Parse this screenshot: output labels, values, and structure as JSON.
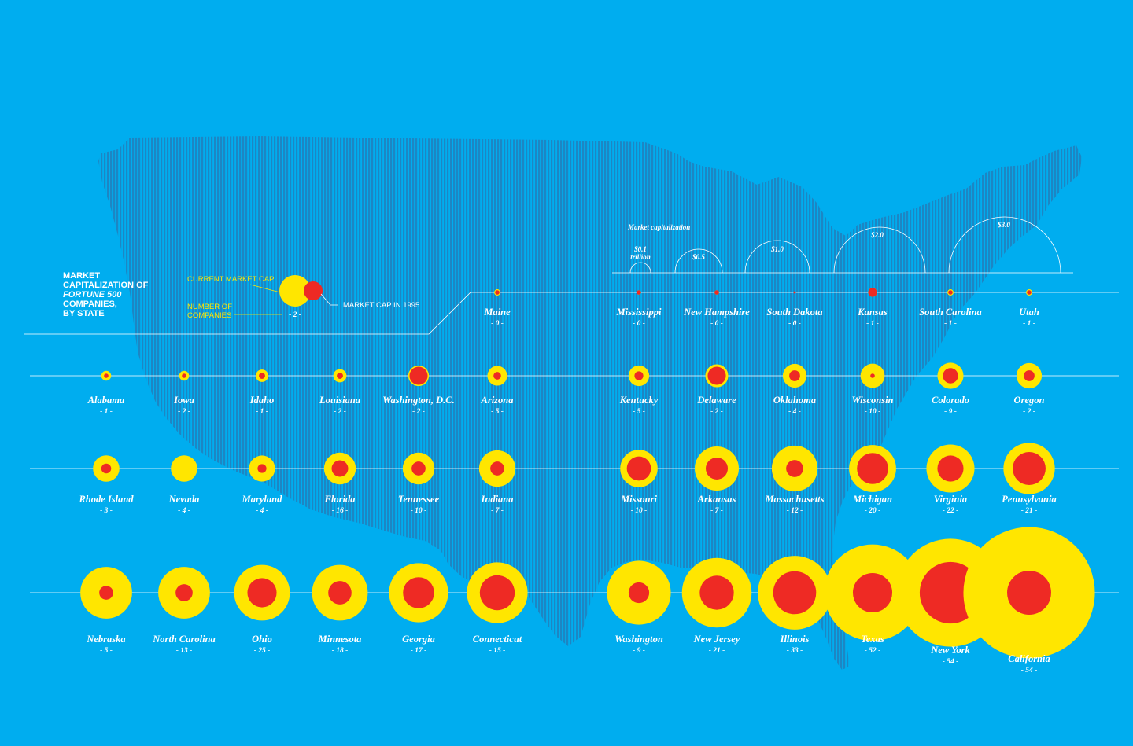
{
  "title_lines": [
    "MARKET",
    "CAPITALIZATION OF",
    "FORTUNE 500",
    "COMPANIES,",
    "BY STATE"
  ],
  "legend": {
    "current_market_cap": "CURRENT MARKET CAP",
    "number_of_companies_lines": [
      "NUMBER OF",
      "COMPANIES"
    ],
    "market_cap_1995": "MARKET CAP IN 1995",
    "sample_count": "- 2 -"
  },
  "scale_key": {
    "title": "Market capitalization",
    "labels": [
      {
        "value": "$0.1",
        "unit": "trillion"
      },
      {
        "value": "$0.5",
        "unit": ""
      },
      {
        "value": "$1.0",
        "unit": ""
      },
      {
        "value": "$2.0",
        "unit": ""
      },
      {
        "value": "$3.0",
        "unit": ""
      }
    ]
  },
  "colors": {
    "background": "#00ADEF",
    "map": "#1C86C4",
    "current": "#FFE600",
    "past": "#EE2A24",
    "text": "#FFFFFF",
    "legend_text": "#FFE600"
  },
  "chart_data": {
    "type": "bubble",
    "value_note": "current and 1995 values are relative circle areas read from bubble size",
    "rows": [
      [
        {
          "state": "Maine",
          "count": "- 0 -",
          "current": 0.02,
          "past": 0.01
        },
        {
          "state": "Mississippi",
          "count": "- 0 -",
          "current": 0.01,
          "past": 0.01
        },
        {
          "state": "New Hampshire",
          "count": "- 0 -",
          "current": 0.01,
          "past": 0.01
        },
        {
          "state": "South Dakota",
          "count": "- 0 -",
          "current": 0.0,
          "past": 0.003
        },
        {
          "state": "Kansas",
          "count": "- 1 -",
          "current": 0.04,
          "past": 0.04
        },
        {
          "state": "South Carolina",
          "count": "- 1 -",
          "current": 0.02,
          "past": 0.01
        },
        {
          "state": "Utah",
          "count": "- 1 -",
          "current": 0.02,
          "past": 0.01
        }
      ],
      [
        {
          "state": "Alabama",
          "count": "- 1 -",
          "current": 0.05,
          "past": 0.01
        },
        {
          "state": "Iowa",
          "count": "- 2 -",
          "current": 0.05,
          "past": 0.01
        },
        {
          "state": "Idaho",
          "count": "- 1 -",
          "current": 0.08,
          "past": 0.02
        },
        {
          "state": "Louisiana",
          "count": "- 2 -",
          "current": 0.09,
          "past": 0.02
        },
        {
          "state": "Washington, D.C.",
          "count": "- 2 -",
          "current": 0.22,
          "past": 0.17
        },
        {
          "state": "Arizona",
          "count": "- 5 -",
          "current": 0.2,
          "past": 0.03
        },
        {
          "state": "Kentucky",
          "count": "- 5 -",
          "current": 0.22,
          "past": 0.04
        },
        {
          "state": "Delaware",
          "count": "- 2 -",
          "current": 0.27,
          "past": 0.17
        },
        {
          "state": "Oklahoma",
          "count": "- 4 -",
          "current": 0.29,
          "past": 0.06
        },
        {
          "state": "Wisconsin",
          "count": "- 10 -",
          "current": 0.3,
          "past": 0.01
        },
        {
          "state": "Colorado",
          "count": "- 9 -",
          "current": 0.35,
          "past": 0.12
        },
        {
          "state": "Oregon",
          "count": "- 2 -",
          "current": 0.33,
          "past": 0.06
        }
      ],
      [
        {
          "state": "Rhode Island",
          "count": "- 3 -",
          "current": 0.36,
          "past": 0.05
        },
        {
          "state": "Nevada",
          "count": "- 4 -",
          "current": 0.36,
          "past": 0.0
        },
        {
          "state": "Maryland",
          "count": "- 4 -",
          "current": 0.35,
          "past": 0.04
        },
        {
          "state": "Florida",
          "count": "- 16 -",
          "current": 0.52,
          "past": 0.14
        },
        {
          "state": "Tennessee",
          "count": "- 10 -",
          "current": 0.52,
          "past": 0.1
        },
        {
          "state": "Indiana",
          "count": "- 7 -",
          "current": 0.68,
          "past": 0.1
        },
        {
          "state": "Missouri",
          "count": "- 10 -",
          "current": 0.72,
          "past": 0.3
        },
        {
          "state": "Arkansas",
          "count": "- 7 -",
          "current": 1.0,
          "past": 0.25
        },
        {
          "state": "Massachusetts",
          "count": "- 12 -",
          "current": 1.08,
          "past": 0.15
        },
        {
          "state": "Michigan",
          "count": "- 20 -",
          "current": 1.14,
          "past": 0.5
        },
        {
          "state": "Virginia",
          "count": "- 22 -",
          "current": 1.19,
          "past": 0.35
        },
        {
          "state": "Pennsylvania",
          "count": "- 21 -",
          "current": 1.36,
          "past": 0.56
        }
      ],
      [
        {
          "state": "Nebraska",
          "count": "- 5 -",
          "current": 1.38,
          "past": 0.1
        },
        {
          "state": "North Carolina",
          "count": "- 13 -",
          "current": 1.38,
          "past": 0.15
        },
        {
          "state": "Ohio",
          "count": "- 25 -",
          "current": 1.6,
          "past": 0.44
        },
        {
          "state": "Minnesota",
          "count": "- 18 -",
          "current": 1.6,
          "past": 0.28
        },
        {
          "state": "Georgia",
          "count": "- 17 -",
          "current": 1.8,
          "past": 0.5
        },
        {
          "state": "Connecticut",
          "count": "- 15 -",
          "current": 1.9,
          "past": 0.63
        },
        {
          "state": "Washington",
          "count": "- 9 -",
          "current": 2.1,
          "past": 0.22
        },
        {
          "state": "New Jersey",
          "count": "- 21 -",
          "current": 2.5,
          "past": 0.6
        },
        {
          "state": "Illinois",
          "count": "- 33 -",
          "current": 2.8,
          "past": 0.95
        },
        {
          "state": "Texas",
          "count": "- 52 -",
          "current": 4.8,
          "past": 0.8
        },
        {
          "state": "New York",
          "count": "- 54 -",
          "current": 6.0,
          "past": 1.95
        },
        {
          "state": "California",
          "count": "- 54 -",
          "current": 8.9,
          "past": 1.0
        }
      ]
    ]
  }
}
